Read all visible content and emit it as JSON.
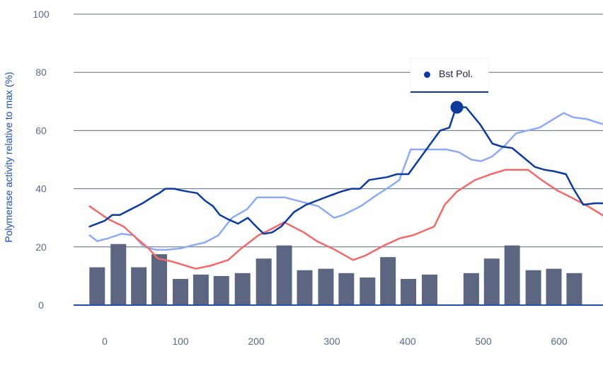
{
  "chart_data": {
    "type": "line",
    "ylabel": "Polymerase activity relative to max (%)",
    "xlabel": "",
    "ylim": [
      0,
      100
    ],
    "xlim": [
      -20,
      660
    ],
    "yticks": [
      0,
      20,
      40,
      60,
      80,
      100
    ],
    "xticks": [
      0,
      100,
      200,
      300,
      400,
      500,
      600
    ],
    "ytick_labels": [
      "0",
      "20",
      "40",
      "60",
      "80",
      "100"
    ],
    "xtick_labels": [
      "0",
      "100",
      "200",
      "300",
      "400",
      "500",
      "600"
    ],
    "grid": true,
    "legend": {
      "placement": "top-center",
      "entries": [
        "Bst Pol."
      ]
    },
    "colors": {
      "bst": "#0d3a9b",
      "light": "#8eaaf0",
      "red": "#f06a6a",
      "bars": "#5c6680",
      "axis": "#1f4fa8",
      "grid": "#5c6b84"
    },
    "highlight": {
      "series": "Bst Pol.",
      "x": 465,
      "y": 68
    },
    "bars": {
      "x": [
        -10,
        18,
        45,
        72,
        100,
        127,
        154,
        182,
        210,
        237,
        264,
        292,
        319,
        347,
        374,
        401,
        429,
        456,
        484,
        511,
        538,
        566,
        593,
        620
      ],
      "values": [
        13,
        21,
        13,
        17.5,
        9,
        10.5,
        10,
        11,
        16,
        20.5,
        12,
        12.5,
        11,
        9.5,
        16.5,
        9,
        10.5,
        null,
        11,
        16,
        20.5,
        12,
        12.5,
        11
      ]
    },
    "series": [
      {
        "name": "Bst Pol.",
        "x": [
          -20,
          0,
          10,
          20,
          35,
          50,
          65,
          72,
          80,
          92,
          100,
          110,
          122,
          132,
          143,
          152,
          163,
          176,
          189,
          200,
          210,
          221,
          233,
          250,
          266,
          281,
          296,
          312,
          326,
          337,
          349,
          361,
          373,
          386,
          401,
          415,
          429,
          443,
          455,
          464,
          477,
          496,
          512,
          524,
          538,
          552,
          568,
          581,
          593,
          609,
          619,
          632,
          647,
          660
        ],
        "y": [
          27,
          29,
          31,
          31,
          33,
          35,
          37.5,
          38.5,
          40,
          40,
          39.5,
          39,
          38.5,
          36,
          34,
          31,
          29.5,
          28,
          30,
          27,
          24.5,
          25,
          27,
          32,
          34.5,
          36,
          37.5,
          39,
          40,
          40,
          43,
          43.5,
          44,
          45,
          45,
          50,
          55,
          60,
          61,
          68,
          68,
          62,
          55.5,
          54.5,
          54,
          51,
          47.5,
          46.5,
          46,
          45,
          40,
          34.5,
          35,
          35
        ]
      },
      {
        "name": "",
        "x": [
          -20,
          -10,
          5,
          22,
          38,
          52,
          68,
          82,
          100,
          115,
          132,
          150,
          168,
          188,
          201,
          214,
          227,
          238,
          260,
          282,
          303,
          315,
          338,
          360,
          378,
          389,
          404,
          416,
          433,
          451,
          468,
          484,
          497,
          511,
          527,
          543,
          558,
          574,
          590,
          606,
          619,
          636,
          660
        ],
        "y": [
          24,
          22,
          23,
          24.5,
          24,
          20,
          19,
          19,
          19.5,
          20.5,
          21.5,
          24,
          30,
          33,
          37,
          37,
          37,
          37,
          35.5,
          34,
          30,
          31,
          34,
          38,
          41,
          43,
          53.5,
          53.5,
          53.5,
          53.5,
          52.5,
          50,
          49.5,
          51,
          54.5,
          59,
          60,
          61,
          63.5,
          66,
          64.5,
          64,
          62
        ]
      },
      {
        "name": "",
        "x": [
          -20,
          5,
          25,
          42,
          58,
          70,
          89,
          120,
          139,
          163,
          178,
          203,
          219,
          237,
          263,
          280,
          304,
          328,
          344,
          369,
          390,
          407,
          435,
          449,
          465,
          489,
          510,
          529,
          559,
          577,
          597,
          616,
          638,
          660
        ],
        "y": [
          34,
          29.5,
          27,
          23,
          19.5,
          16,
          15,
          12.5,
          13.5,
          15.5,
          19,
          24,
          26,
          28.5,
          25,
          22,
          19,
          15.5,
          17,
          20.5,
          23,
          24,
          27,
          34.5,
          39,
          43,
          45,
          46.5,
          46.5,
          43,
          39.5,
          37,
          34,
          30.5
        ]
      }
    ]
  }
}
